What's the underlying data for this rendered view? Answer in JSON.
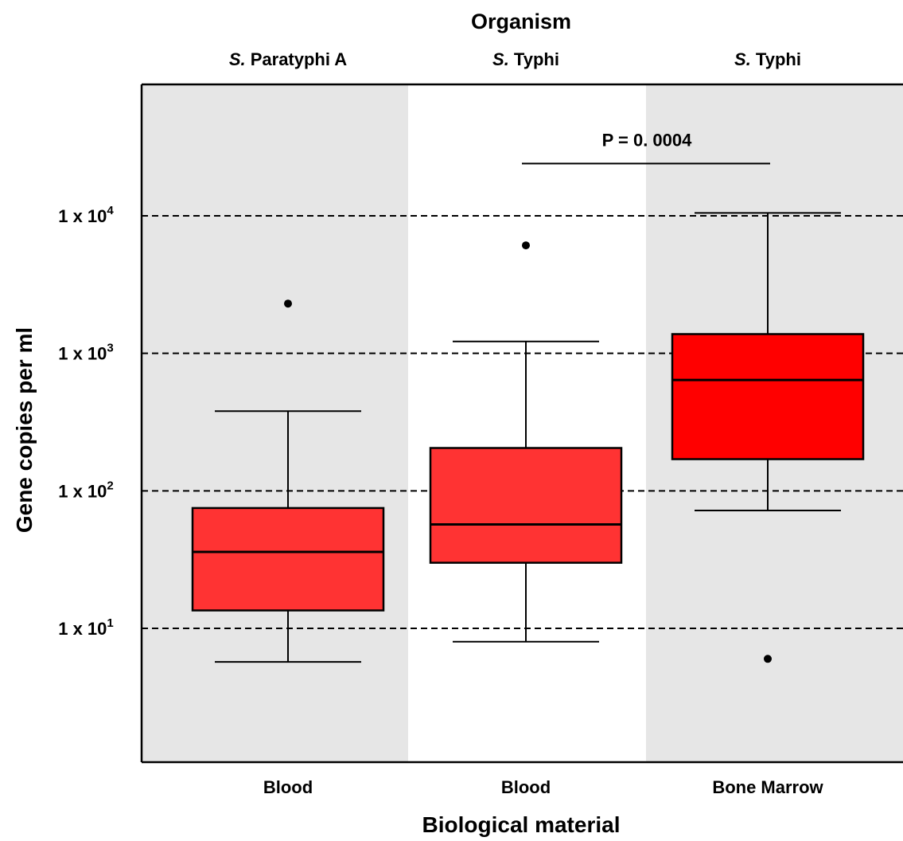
{
  "chart_data": {
    "type": "box",
    "title": "Organism",
    "xlabel": "Biological material",
    "ylabel": "Gene copies per ml",
    "yscale": "log",
    "ylim": [
      0.5,
      100000
    ],
    "gridlines_y": [
      10,
      100,
      1000,
      10000
    ],
    "yticks": [
      {
        "value": 10,
        "label_base": "1 x 10",
        "label_exp": "1"
      },
      {
        "value": 100,
        "label_base": "1 x 10",
        "label_exp": "2"
      },
      {
        "value": 1000,
        "label_base": "1 x 10",
        "label_exp": "3"
      },
      {
        "value": 10000,
        "label_base": "1 x 10",
        "label_exp": "4"
      }
    ],
    "groups": [
      {
        "organism_italic": "S.",
        "organism_rest": " Paratyphi A",
        "material": "Blood",
        "background": "#e6e6e6",
        "box_color": "#ff3333",
        "whisker_low": 5.7,
        "q1": 13.5,
        "median": 36,
        "q3": 75,
        "whisker_high": 380,
        "outliers": [
          2300
        ]
      },
      {
        "organism_italic": "S.",
        "organism_rest": " Typhi",
        "material": "Blood",
        "background": "#ffffff",
        "box_color": "#ff3333",
        "whisker_low": 8,
        "q1": 30,
        "median": 57,
        "q3": 205,
        "whisker_high": 1220,
        "outliers": [
          6100
        ]
      },
      {
        "organism_italic": "S.",
        "organism_rest": " Typhi",
        "material": "Bone Marrow",
        "background": "#e6e6e6",
        "box_color": "#ff0000",
        "whisker_low": 72,
        "q1": 170,
        "median": 640,
        "q3": 1380,
        "whisker_high": 10500,
        "outliers": [
          6
        ]
      }
    ],
    "annotations": [
      {
        "text": "P = 0. 0004",
        "from_group": 1,
        "to_group": 2,
        "y": 24000
      }
    ]
  }
}
